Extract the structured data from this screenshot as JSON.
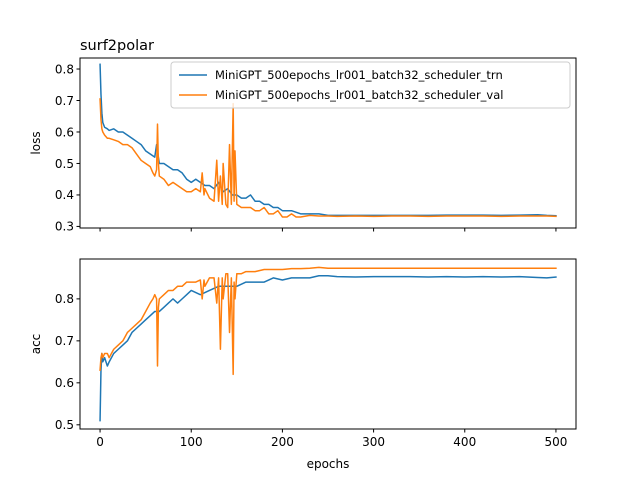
{
  "chart_data": {
    "type": "line",
    "title": "surf2polar",
    "xlabel": "epochs",
    "xlim": [
      -22,
      522
    ],
    "xticks": [
      0,
      100,
      200,
      300,
      400,
      500
    ],
    "legend_placement": "upper-right",
    "grid": false,
    "colors": {
      "trn": "#1f77b4",
      "val": "#ff7f0e"
    },
    "subplots": [
      {
        "ylabel": "loss",
        "ylim": [
          0.295,
          0.835
        ],
        "yticks": [
          0.3,
          0.4,
          0.5,
          0.6,
          0.7,
          0.8
        ],
        "show_xtick_labels": false,
        "series": [
          {
            "name": "MiniGPT_500epochs_lr001_batch32_scheduler_trn",
            "color": "#1f77b4",
            "x": [
              0,
              1,
              2,
              3,
              5,
              8,
              10,
              15,
              20,
              25,
              30,
              35,
              40,
              45,
              50,
              55,
              60,
              62,
              65,
              70,
              75,
              80,
              85,
              90,
              95,
              100,
              105,
              110,
              115,
              120,
              125,
              130,
              135,
              140,
              145,
              150,
              155,
              160,
              165,
              170,
              175,
              180,
              185,
              190,
              195,
              200,
              205,
              210,
              220,
              230,
              240,
              250,
              260,
              270,
              280,
              300,
              320,
              340,
              360,
              380,
              400,
              420,
              440,
              460,
              480,
              490,
              500
            ],
            "y": [
              0.815,
              0.72,
              0.66,
              0.63,
              0.615,
              0.61,
              0.605,
              0.61,
              0.6,
              0.6,
              0.59,
              0.58,
              0.57,
              0.56,
              0.54,
              0.53,
              0.52,
              0.56,
              0.5,
              0.5,
              0.49,
              0.48,
              0.48,
              0.47,
              0.45,
              0.44,
              0.45,
              0.44,
              0.43,
              0.43,
              0.42,
              0.44,
              0.41,
              0.42,
              0.4,
              0.4,
              0.39,
              0.39,
              0.4,
              0.38,
              0.38,
              0.37,
              0.37,
              0.36,
              0.36,
              0.35,
              0.35,
              0.35,
              0.34,
              0.34,
              0.34,
              0.335,
              0.335,
              0.335,
              0.335,
              0.335,
              0.335,
              0.335,
              0.335,
              0.336,
              0.336,
              0.336,
              0.335,
              0.336,
              0.337,
              0.335,
              0.334
            ]
          },
          {
            "name": "MiniGPT_500epochs_lr001_batch32_scheduler_val",
            "color": "#ff7f0e",
            "x": [
              0,
              1,
              2,
              3,
              5,
              8,
              10,
              15,
              20,
              25,
              30,
              35,
              40,
              45,
              50,
              55,
              58,
              60,
              62,
              63,
              64,
              65,
              70,
              75,
              80,
              85,
              90,
              95,
              100,
              105,
              110,
              112,
              114,
              115,
              120,
              125,
              128,
              130,
              132,
              134,
              135,
              138,
              140,
              142,
              144,
              146,
              147,
              148,
              150,
              155,
              160,
              165,
              170,
              175,
              180,
              185,
              190,
              195,
              200,
              205,
              210,
              215,
              220,
              230,
              240,
              250,
              260,
              280,
              300,
              320,
              340,
              360,
              380,
              400,
              420,
              440,
              460,
              480,
              490,
              500
            ],
            "y": [
              0.705,
              0.64,
              0.61,
              0.6,
              0.59,
              0.58,
              0.58,
              0.575,
              0.57,
              0.56,
              0.56,
              0.55,
              0.53,
              0.51,
              0.5,
              0.49,
              0.47,
              0.46,
              0.48,
              0.625,
              0.5,
              0.46,
              0.45,
              0.43,
              0.44,
              0.43,
              0.42,
              0.41,
              0.41,
              0.42,
              0.41,
              0.47,
              0.4,
              0.42,
              0.39,
              0.38,
              0.51,
              0.38,
              0.46,
              0.37,
              0.5,
              0.37,
              0.36,
              0.56,
              0.37,
              0.69,
              0.38,
              0.54,
              0.37,
              0.36,
              0.36,
              0.36,
              0.35,
              0.35,
              0.36,
              0.34,
              0.34,
              0.35,
              0.33,
              0.33,
              0.34,
              0.33,
              0.33,
              0.335,
              0.333,
              0.333,
              0.332,
              0.333,
              0.332,
              0.333,
              0.333,
              0.332,
              0.333,
              0.333,
              0.333,
              0.332,
              0.333,
              0.333,
              0.333,
              0.332
            ]
          }
        ]
      },
      {
        "ylabel": "acc",
        "ylim": [
          0.49,
          0.895
        ],
        "yticks": [
          0.5,
          0.6,
          0.7,
          0.8
        ],
        "show_xtick_labels": true,
        "series": [
          {
            "name": "MiniGPT_500epochs_lr001_batch32_scheduler_trn",
            "color": "#1f77b4",
            "x": [
              0,
              1,
              2,
              3,
              5,
              8,
              10,
              15,
              20,
              25,
              30,
              35,
              40,
              45,
              50,
              55,
              60,
              65,
              70,
              75,
              80,
              85,
              90,
              95,
              100,
              110,
              120,
              130,
              140,
              150,
              160,
              170,
              180,
              190,
              200,
              210,
              220,
              230,
              240,
              250,
              260,
              280,
              300,
              320,
              340,
              360,
              380,
              400,
              420,
              440,
              460,
              480,
              490,
              500
            ],
            "y": [
              0.51,
              0.63,
              0.67,
              0.65,
              0.66,
              0.64,
              0.65,
              0.67,
              0.68,
              0.69,
              0.7,
              0.72,
              0.73,
              0.74,
              0.75,
              0.76,
              0.77,
              0.77,
              0.78,
              0.79,
              0.8,
              0.79,
              0.8,
              0.81,
              0.82,
              0.81,
              0.82,
              0.83,
              0.83,
              0.83,
              0.84,
              0.84,
              0.84,
              0.85,
              0.845,
              0.85,
              0.85,
              0.85,
              0.855,
              0.855,
              0.853,
              0.852,
              0.853,
              0.853,
              0.853,
              0.852,
              0.853,
              0.852,
              0.853,
              0.852,
              0.853,
              0.851,
              0.85,
              0.852
            ]
          },
          {
            "name": "MiniGPT_500epochs_lr001_batch32_scheduler_val",
            "color": "#ff7f0e",
            "x": [
              0,
              1,
              2,
              3,
              5,
              8,
              10,
              15,
              20,
              25,
              30,
              35,
              40,
              45,
              50,
              55,
              58,
              60,
              62,
              63,
              64,
              65,
              70,
              75,
              80,
              85,
              90,
              95,
              100,
              105,
              110,
              112,
              114,
              115,
              120,
              125,
              128,
              130,
              132,
              134,
              135,
              138,
              140,
              142,
              144,
              146,
              147,
              148,
              150,
              155,
              160,
              170,
              180,
              190,
              200,
              210,
              220,
              230,
              240,
              250,
              260,
              280,
              300,
              320,
              340,
              360,
              380,
              400,
              420,
              440,
              460,
              480,
              490,
              500
            ],
            "y": [
              0.63,
              0.66,
              0.67,
              0.66,
              0.67,
              0.67,
              0.66,
              0.68,
              0.69,
              0.7,
              0.72,
              0.73,
              0.74,
              0.75,
              0.77,
              0.79,
              0.8,
              0.81,
              0.8,
              0.64,
              0.78,
              0.8,
              0.81,
              0.82,
              0.82,
              0.83,
              0.83,
              0.84,
              0.84,
              0.84,
              0.845,
              0.8,
              0.845,
              0.83,
              0.85,
              0.85,
              0.79,
              0.85,
              0.68,
              0.85,
              0.8,
              0.86,
              0.86,
              0.72,
              0.85,
              0.62,
              0.84,
              0.8,
              0.86,
              0.86,
              0.865,
              0.865,
              0.87,
              0.87,
              0.87,
              0.872,
              0.872,
              0.873,
              0.875,
              0.873,
              0.873,
              0.873,
              0.873,
              0.873,
              0.873,
              0.873,
              0.873,
              0.873,
              0.873,
              0.873,
              0.873,
              0.873,
              0.873,
              0.873
            ]
          }
        ]
      }
    ]
  }
}
